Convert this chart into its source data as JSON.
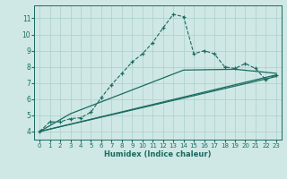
{
  "title": "",
  "xlabel": "Humidex (Indice chaleur)",
  "xlim": [
    -0.5,
    23.5
  ],
  "ylim": [
    3.5,
    11.8
  ],
  "xticks": [
    0,
    1,
    2,
    3,
    4,
    5,
    6,
    7,
    8,
    9,
    10,
    11,
    12,
    13,
    14,
    15,
    16,
    17,
    18,
    19,
    20,
    21,
    22,
    23
  ],
  "yticks": [
    4,
    5,
    6,
    7,
    8,
    9,
    10,
    11
  ],
  "bg_color": "#cfe8e5",
  "grid_color": "#aacfcc",
  "line_color": "#1a6b60",
  "lines": [
    {
      "x": [
        0,
        1,
        2,
        3,
        4,
        5,
        6,
        7,
        8,
        9,
        10,
        11,
        12,
        13,
        14,
        15,
        16,
        17,
        18,
        19,
        20,
        21,
        22,
        23
      ],
      "y": [
        4.0,
        4.6,
        4.6,
        4.8,
        4.85,
        5.2,
        6.1,
        6.9,
        7.6,
        8.3,
        8.8,
        9.5,
        10.4,
        11.25,
        11.1,
        8.8,
        9.0,
        8.8,
        8.0,
        7.9,
        8.2,
        7.9,
        7.2,
        7.5
      ],
      "marker": "+",
      "linestyle": "--",
      "linewidth": 0.8,
      "markersize": 3.5
    },
    {
      "x": [
        0,
        23
      ],
      "y": [
        4.0,
        7.4
      ],
      "marker": null,
      "linestyle": "-",
      "linewidth": 0.9,
      "markersize": 0
    },
    {
      "x": [
        0,
        23
      ],
      "y": [
        4.0,
        7.5
      ],
      "marker": null,
      "linestyle": "-",
      "linewidth": 0.9,
      "markersize": 0
    },
    {
      "x": [
        0,
        3,
        14,
        19,
        23
      ],
      "y": [
        4.0,
        5.1,
        7.8,
        7.85,
        7.6
      ],
      "marker": null,
      "linestyle": "-",
      "linewidth": 0.9,
      "markersize": 0
    }
  ]
}
